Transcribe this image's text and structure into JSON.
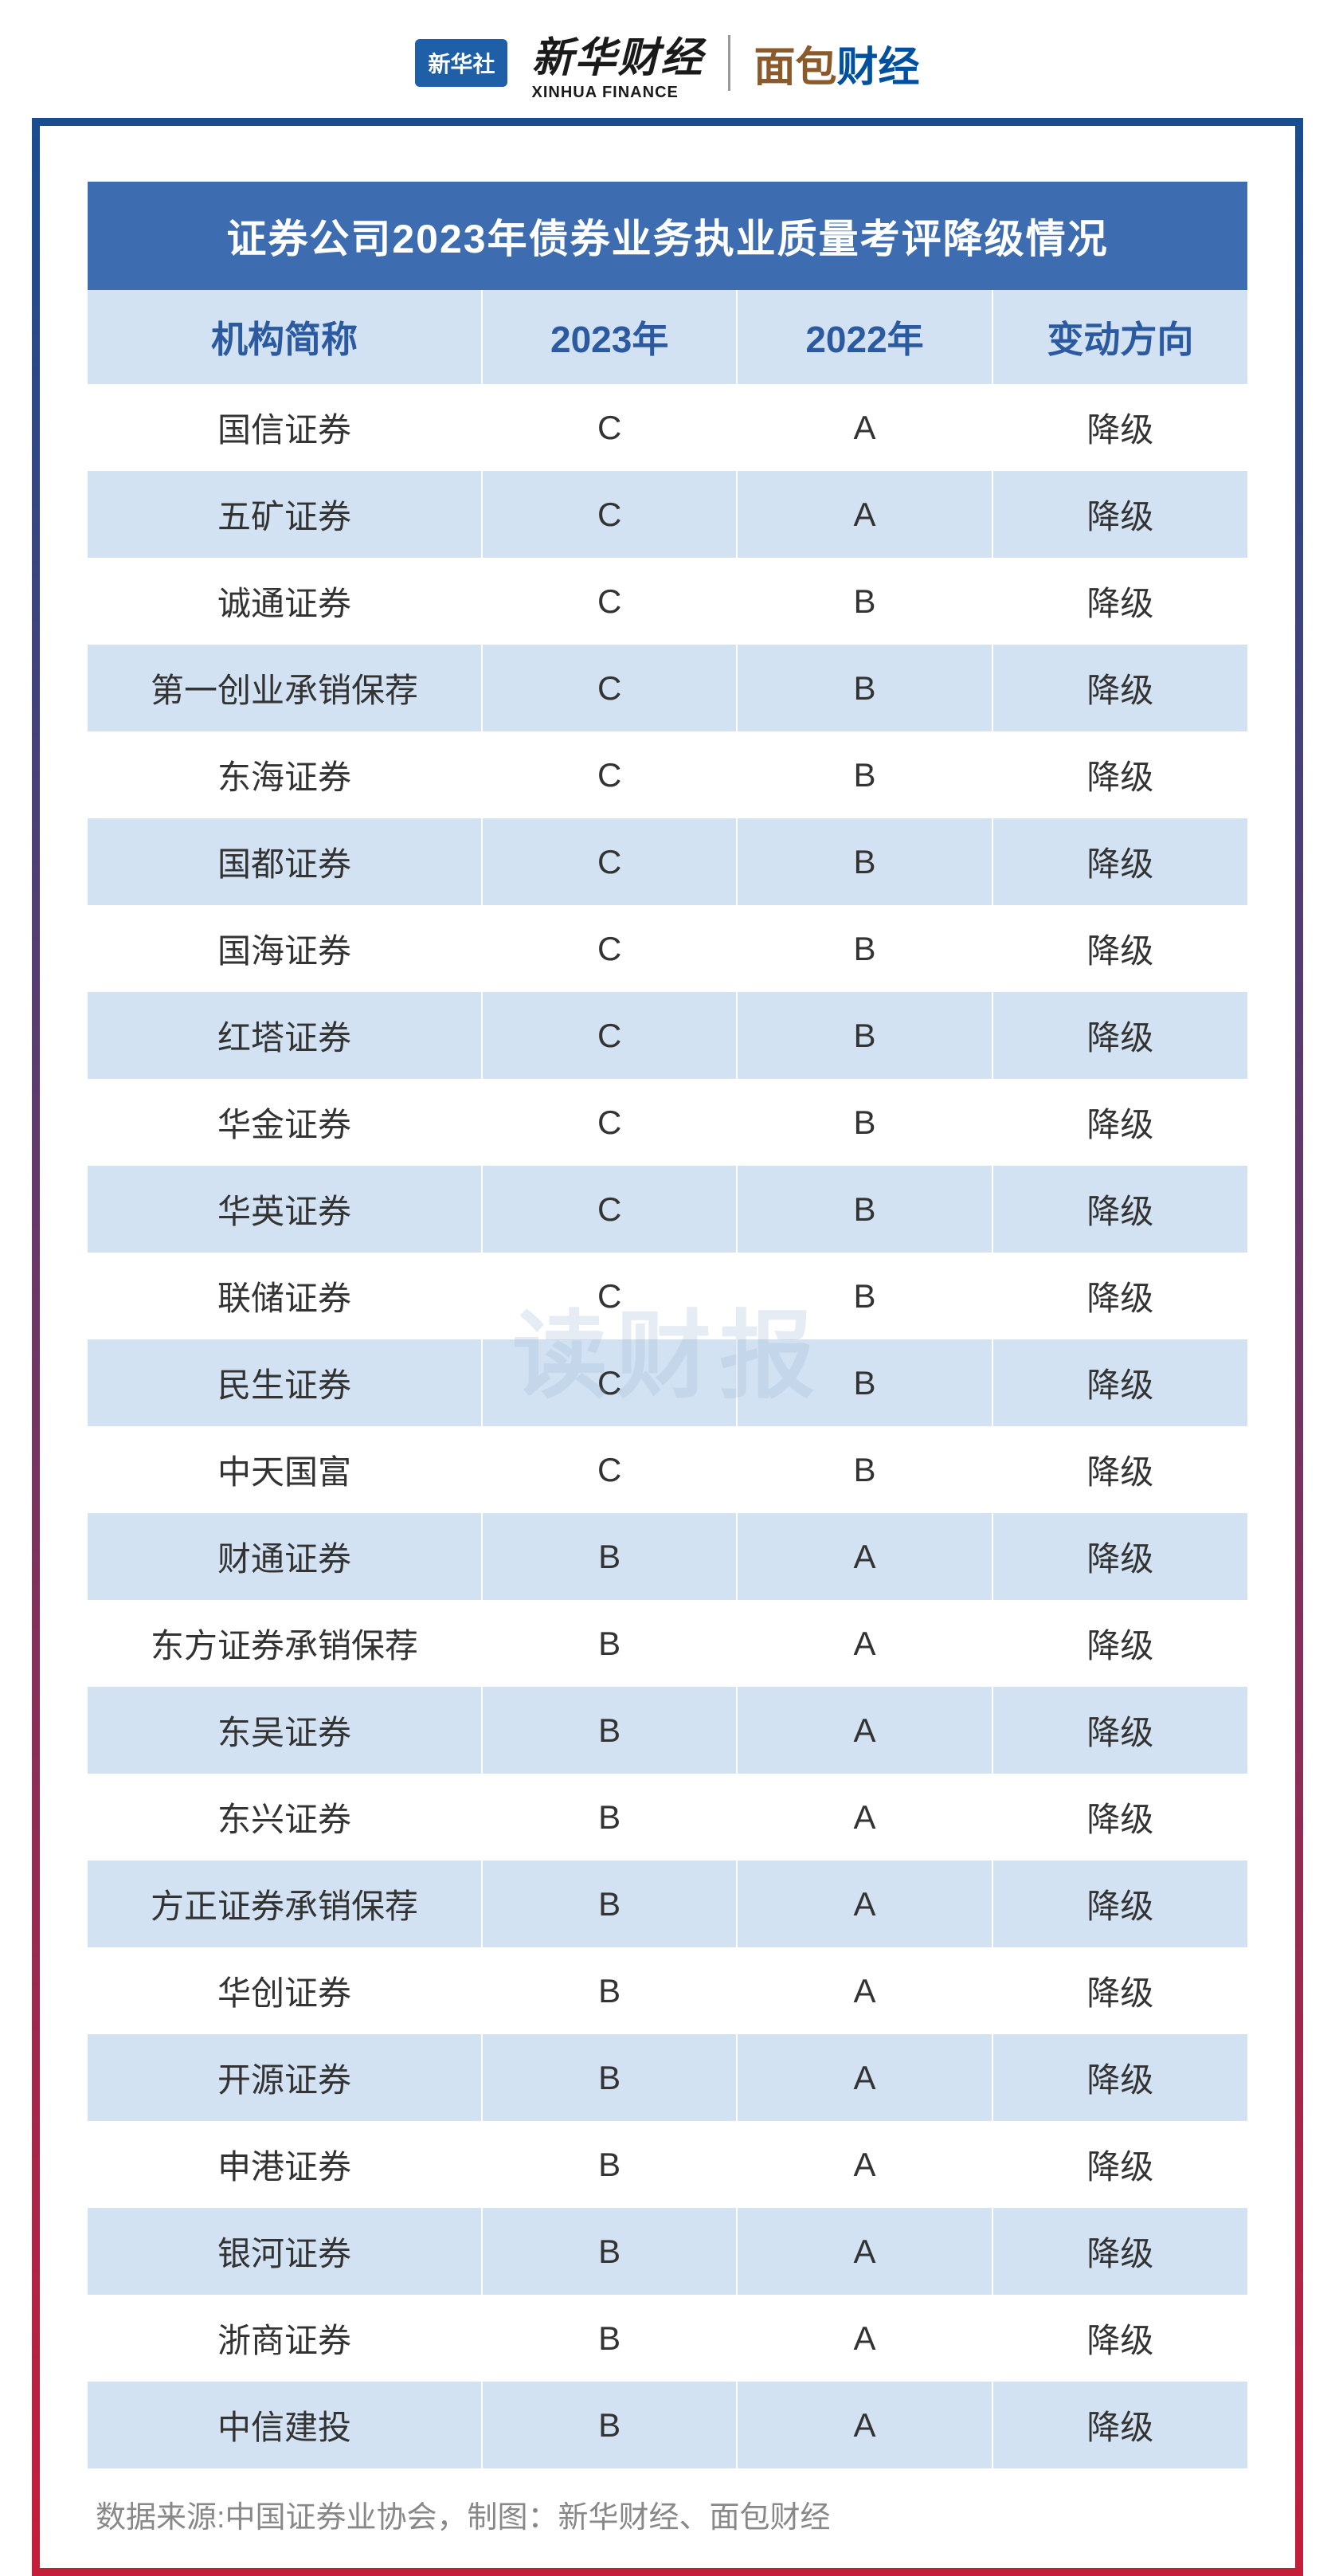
{
  "header": {
    "badge_text": "新华社",
    "logo1_main": "新华财经",
    "logo1_sub": "XINHUA FINANCE",
    "logo2_part1": "面包",
    "logo2_part2": "财经"
  },
  "table": {
    "title": "证券公司2023年债券业务执业质量考评降级情况",
    "columns": [
      "机构简称",
      "2023年",
      "2022年",
      "变动方向"
    ],
    "rows": [
      [
        "国信证券",
        "C",
        "A",
        "降级"
      ],
      [
        "五矿证券",
        "C",
        "A",
        "降级"
      ],
      [
        "诚通证券",
        "C",
        "B",
        "降级"
      ],
      [
        "第一创业承销保荐",
        "C",
        "B",
        "降级"
      ],
      [
        "东海证券",
        "C",
        "B",
        "降级"
      ],
      [
        "国都证券",
        "C",
        "B",
        "降级"
      ],
      [
        "国海证券",
        "C",
        "B",
        "降级"
      ],
      [
        "红塔证券",
        "C",
        "B",
        "降级"
      ],
      [
        "华金证券",
        "C",
        "B",
        "降级"
      ],
      [
        "华英证券",
        "C",
        "B",
        "降级"
      ],
      [
        "联储证券",
        "C",
        "B",
        "降级"
      ],
      [
        "民生证券",
        "C",
        "B",
        "降级"
      ],
      [
        "中天国富",
        "C",
        "B",
        "降级"
      ],
      [
        "财通证券",
        "B",
        "A",
        "降级"
      ],
      [
        "东方证券承销保荐",
        "B",
        "A",
        "降级"
      ],
      [
        "东吴证券",
        "B",
        "A",
        "降级"
      ],
      [
        "东兴证券",
        "B",
        "A",
        "降级"
      ],
      [
        "方正证券承销保荐",
        "B",
        "A",
        "降级"
      ],
      [
        "华创证券",
        "B",
        "A",
        "降级"
      ],
      [
        "开源证券",
        "B",
        "A",
        "降级"
      ],
      [
        "申港证券",
        "B",
        "A",
        "降级"
      ],
      [
        "银河证券",
        "B",
        "A",
        "降级"
      ],
      [
        "浙商证券",
        "B",
        "A",
        "降级"
      ],
      [
        "中信建投",
        "B",
        "A",
        "降级"
      ]
    ]
  },
  "watermark": "读财报",
  "source": "数据来源:中国证券业协会，制图：新华财经、面包财经",
  "styling": {
    "title_bg": "#3d6cb0",
    "title_color": "#ffffff",
    "header_bg": "#d2e2f2",
    "header_color": "#2c5aa0",
    "row_odd_bg": "#ffffff",
    "row_even_bg": "#d2e2f2",
    "cell_color": "#333333",
    "source_color": "#888888",
    "border_top_color": "#1a4d8f",
    "border_bottom_color": "#c41e3a",
    "title_fontsize": 50,
    "header_fontsize": 46,
    "cell_fontsize": 42,
    "source_fontsize": 38
  }
}
